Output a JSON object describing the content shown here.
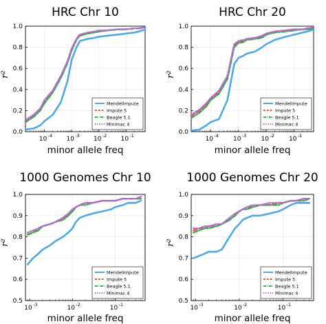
{
  "chart_data": [
    {
      "type": "line",
      "title": "HRC Chr 10",
      "xlabel": "minor allele freq",
      "ylabel": "r²",
      "xscale": "log",
      "xlim": [
        2e-05,
        0.5
      ],
      "ylim": [
        0.0,
        1.0
      ],
      "yticks": [
        "0.0",
        "0.2",
        "0.4",
        "0.6",
        "0.8",
        "1.0"
      ],
      "xticks": [
        {
          "base": "10",
          "exp": "-4",
          "value": 0.0001
        },
        {
          "base": "10",
          "exp": "-3",
          "value": 0.001
        },
        {
          "base": "10",
          "exp": "-2",
          "value": 0.01
        },
        {
          "base": "10",
          "exp": "-1",
          "value": 0.1
        }
      ],
      "grid": true,
      "legend_position": "bottom-right",
      "series": [
        {
          "name": "MendelImpute",
          "color": "#4fa8e6",
          "style": "solid",
          "x": [
            2e-05,
            4e-05,
            7e-05,
            0.0001,
            0.0002,
            0.0004,
            0.0007,
            0.001,
            0.0015,
            0.002,
            0.004,
            0.007,
            0.01,
            0.02,
            0.05,
            0.1,
            0.2,
            0.3,
            0.5
          ],
          "y": [
            0.02,
            0.03,
            0.06,
            0.1,
            0.16,
            0.28,
            0.48,
            0.68,
            0.8,
            0.86,
            0.88,
            0.89,
            0.9,
            0.91,
            0.92,
            0.93,
            0.94,
            0.95,
            0.97
          ]
        },
        {
          "name": "Impute 5",
          "color": "#e05a44",
          "style": "dashed",
          "x": [
            2e-05,
            4e-05,
            7e-05,
            0.0001,
            0.0002,
            0.0004,
            0.0007,
            0.001,
            0.0015,
            0.002,
            0.004,
            0.007,
            0.01,
            0.02,
            0.05,
            0.1,
            0.2,
            0.3,
            0.5
          ],
          "y": [
            0.1,
            0.15,
            0.21,
            0.28,
            0.38,
            0.52,
            0.66,
            0.78,
            0.88,
            0.92,
            0.94,
            0.95,
            0.95,
            0.96,
            0.97,
            0.97,
            0.98,
            0.98,
            0.99
          ]
        },
        {
          "name": "Beagle 5.1",
          "color": "#3caa4e",
          "style": "dashdot",
          "x": [
            2e-05,
            4e-05,
            7e-05,
            0.0001,
            0.0002,
            0.0004,
            0.0007,
            0.001,
            0.0015,
            0.002,
            0.004,
            0.007,
            0.01,
            0.02,
            0.05,
            0.1,
            0.2,
            0.3,
            0.5
          ],
          "y": [
            0.09,
            0.14,
            0.2,
            0.27,
            0.37,
            0.51,
            0.65,
            0.77,
            0.87,
            0.91,
            0.93,
            0.94,
            0.95,
            0.96,
            0.97,
            0.97,
            0.98,
            0.98,
            0.99
          ]
        },
        {
          "name": "Minimac 4",
          "color": "#b569d8",
          "style": "dotted",
          "x": [
            2e-05,
            4e-05,
            7e-05,
            0.0001,
            0.0002,
            0.0004,
            0.0007,
            0.001,
            0.0015,
            0.002,
            0.004,
            0.007,
            0.01,
            0.02,
            0.05,
            0.1,
            0.2,
            0.3,
            0.5
          ],
          "y": [
            0.11,
            0.16,
            0.22,
            0.3,
            0.39,
            0.53,
            0.67,
            0.79,
            0.88,
            0.92,
            0.94,
            0.95,
            0.96,
            0.96,
            0.97,
            0.97,
            0.98,
            0.98,
            0.99
          ]
        }
      ]
    },
    {
      "type": "line",
      "title": "HRC Chr 20",
      "xlabel": "minor allele freq",
      "ylabel": "r²",
      "xscale": "log",
      "xlim": [
        2e-05,
        0.5
      ],
      "ylim": [
        0.0,
        1.0
      ],
      "yticks": [
        "0.0",
        "0.2",
        "0.4",
        "0.6",
        "0.8",
        "1.0"
      ],
      "xticks": [
        {
          "base": "10",
          "exp": "-4",
          "value": 0.0001
        },
        {
          "base": "10",
          "exp": "-3",
          "value": 0.001
        },
        {
          "base": "10",
          "exp": "-2",
          "value": 0.01
        },
        {
          "base": "10",
          "exp": "-1",
          "value": 0.1
        }
      ],
      "grid": true,
      "legend_position": "bottom-right",
      "series": [
        {
          "name": "MendelImpute",
          "color": "#4fa8e6",
          "style": "solid",
          "x": [
            2e-05,
            4e-05,
            7e-05,
            0.0001,
            0.0002,
            0.0004,
            0.0007,
            0.001,
            0.0015,
            0.002,
            0.004,
            0.007,
            0.01,
            0.02,
            0.05,
            0.1,
            0.2,
            0.3,
            0.5
          ],
          "y": [
            0.01,
            0.02,
            0.06,
            0.09,
            0.12,
            0.3,
            0.64,
            0.7,
            0.72,
            0.74,
            0.76,
            0.8,
            0.83,
            0.87,
            0.9,
            0.92,
            0.94,
            0.95,
            0.97
          ]
        },
        {
          "name": "Impute 5",
          "color": "#e05a44",
          "style": "dashed",
          "x": [
            2e-05,
            4e-05,
            7e-05,
            0.0001,
            0.0002,
            0.0004,
            0.0007,
            0.001,
            0.0015,
            0.002,
            0.004,
            0.007,
            0.01,
            0.02,
            0.05,
            0.1,
            0.2,
            0.3,
            0.5
          ],
          "y": [
            0.15,
            0.2,
            0.26,
            0.31,
            0.38,
            0.52,
            0.82,
            0.85,
            0.86,
            0.88,
            0.89,
            0.9,
            0.93,
            0.95,
            0.96,
            0.97,
            0.97,
            0.98,
            0.98
          ]
        },
        {
          "name": "Beagle 5.1",
          "color": "#3caa4e",
          "style": "dashdot",
          "x": [
            2e-05,
            4e-05,
            7e-05,
            0.0001,
            0.0002,
            0.0004,
            0.0007,
            0.001,
            0.0015,
            0.002,
            0.004,
            0.007,
            0.01,
            0.02,
            0.05,
            0.1,
            0.2,
            0.3,
            0.5
          ],
          "y": [
            0.13,
            0.18,
            0.24,
            0.3,
            0.36,
            0.5,
            0.8,
            0.84,
            0.85,
            0.87,
            0.88,
            0.89,
            0.92,
            0.94,
            0.95,
            0.96,
            0.97,
            0.97,
            0.98
          ]
        },
        {
          "name": "Minimac 4",
          "color": "#b569d8",
          "style": "dotted",
          "x": [
            2e-05,
            4e-05,
            7e-05,
            0.0001,
            0.0002,
            0.0004,
            0.0007,
            0.001,
            0.0015,
            0.002,
            0.004,
            0.007,
            0.01,
            0.02,
            0.05,
            0.1,
            0.2,
            0.3,
            0.5
          ],
          "y": [
            0.16,
            0.21,
            0.27,
            0.32,
            0.39,
            0.53,
            0.83,
            0.86,
            0.87,
            0.88,
            0.89,
            0.91,
            0.93,
            0.95,
            0.96,
            0.97,
            0.97,
            0.98,
            0.99
          ]
        }
      ]
    },
    {
      "type": "line",
      "title": "1000 Genomes Chr 10",
      "xlabel": "minor allele freq",
      "ylabel": "r²",
      "xscale": "log",
      "xlim": [
        0.0008,
        0.5
      ],
      "ylim": [
        0.5,
        1.0
      ],
      "yticks": [
        "0.5",
        "0.6",
        "0.7",
        "0.8",
        "0.9",
        "1.0"
      ],
      "xticks": [
        {
          "base": "10",
          "exp": "-3",
          "value": 0.001
        },
        {
          "base": "10",
          "exp": "-2",
          "value": 0.01
        },
        {
          "base": "10",
          "exp": "-1",
          "value": 0.1
        }
      ],
      "grid": true,
      "legend_position": "bottom-right",
      "series": [
        {
          "name": "MendelImpute",
          "color": "#4fa8e6",
          "style": "solid",
          "x": [
            0.0009,
            0.0012,
            0.0016,
            0.002,
            0.003,
            0.004,
            0.006,
            0.008,
            0.01,
            0.012,
            0.015,
            0.02,
            0.03,
            0.05,
            0.08,
            0.1,
            0.15,
            0.2,
            0.3,
            0.4
          ],
          "y": [
            0.67,
            0.7,
            0.72,
            0.74,
            0.76,
            0.78,
            0.8,
            0.82,
            0.84,
            0.87,
            0.89,
            0.9,
            0.91,
            0.92,
            0.93,
            0.94,
            0.95,
            0.96,
            0.96,
            0.97
          ]
        },
        {
          "name": "Impute 5",
          "color": "#e05a44",
          "style": "dashed",
          "x": [
            0.0009,
            0.0012,
            0.0016,
            0.002,
            0.003,
            0.004,
            0.006,
            0.008,
            0.01,
            0.012,
            0.015,
            0.02,
            0.03,
            0.05,
            0.08,
            0.1,
            0.15,
            0.2,
            0.3,
            0.4
          ],
          "y": [
            0.81,
            0.82,
            0.84,
            0.85,
            0.86,
            0.87,
            0.89,
            0.9,
            0.92,
            0.94,
            0.95,
            0.96,
            0.96,
            0.97,
            0.97,
            0.97,
            0.98,
            0.98,
            0.98,
            0.98
          ]
        },
        {
          "name": "Beagle 5.1",
          "color": "#3caa4e",
          "style": "dashdot",
          "x": [
            0.0009,
            0.0012,
            0.0016,
            0.002,
            0.003,
            0.004,
            0.006,
            0.008,
            0.01,
            0.012,
            0.015,
            0.02,
            0.03,
            0.05,
            0.08,
            0.1,
            0.15,
            0.2,
            0.3,
            0.4
          ],
          "y": [
            0.81,
            0.82,
            0.83,
            0.85,
            0.86,
            0.87,
            0.88,
            0.9,
            0.92,
            0.94,
            0.95,
            0.95,
            0.96,
            0.97,
            0.97,
            0.97,
            0.98,
            0.98,
            0.98,
            0.98
          ]
        },
        {
          "name": "Minimac 4",
          "color": "#b569d8",
          "style": "dotted",
          "x": [
            0.0009,
            0.0012,
            0.0016,
            0.002,
            0.003,
            0.004,
            0.006,
            0.008,
            0.01,
            0.012,
            0.015,
            0.02,
            0.03,
            0.05,
            0.08,
            0.1,
            0.15,
            0.2,
            0.3,
            0.4
          ],
          "y": [
            0.82,
            0.83,
            0.84,
            0.85,
            0.86,
            0.87,
            0.89,
            0.91,
            0.93,
            0.94,
            0.95,
            0.96,
            0.96,
            0.97,
            0.97,
            0.97,
            0.98,
            0.98,
            0.98,
            0.99
          ]
        }
      ]
    },
    {
      "type": "line",
      "title": "1000 Genomes Chr 20",
      "xlabel": "minor allele freq",
      "ylabel": "r²",
      "xscale": "log",
      "xlim": [
        0.0008,
        0.5
      ],
      "ylim": [
        0.5,
        1.0
      ],
      "yticks": [
        "0.5",
        "0.6",
        "0.7",
        "0.8",
        "0.9",
        "1.0"
      ],
      "xticks": [
        {
          "base": "10",
          "exp": "-3",
          "value": 0.001
        },
        {
          "base": "10",
          "exp": "-2",
          "value": 0.01
        },
        {
          "base": "10",
          "exp": "-1",
          "value": 0.1
        }
      ],
      "grid": true,
      "legend_position": "bottom-right",
      "series": [
        {
          "name": "MendelImpute",
          "color": "#4fa8e6",
          "style": "solid",
          "x": [
            0.0009,
            0.0012,
            0.0016,
            0.002,
            0.003,
            0.004,
            0.006,
            0.008,
            0.01,
            0.012,
            0.015,
            0.02,
            0.03,
            0.05,
            0.08,
            0.1,
            0.15,
            0.2,
            0.3,
            0.4
          ],
          "y": [
            0.7,
            0.71,
            0.72,
            0.73,
            0.73,
            0.74,
            0.8,
            0.84,
            0.86,
            0.88,
            0.89,
            0.9,
            0.9,
            0.91,
            0.92,
            0.93,
            0.95,
            0.96,
            0.96,
            0.96
          ]
        },
        {
          "name": "Impute 5",
          "color": "#e05a44",
          "style": "dashed",
          "x": [
            0.0009,
            0.0012,
            0.0016,
            0.002,
            0.003,
            0.004,
            0.006,
            0.008,
            0.01,
            0.012,
            0.015,
            0.02,
            0.03,
            0.05,
            0.08,
            0.1,
            0.15,
            0.2,
            0.3,
            0.4
          ],
          "y": [
            0.83,
            0.84,
            0.84,
            0.85,
            0.85,
            0.86,
            0.88,
            0.9,
            0.92,
            0.93,
            0.94,
            0.94,
            0.95,
            0.95,
            0.96,
            0.96,
            0.97,
            0.97,
            0.98,
            0.98
          ]
        },
        {
          "name": "Beagle 5.1",
          "color": "#3caa4e",
          "style": "dashdot",
          "x": [
            0.0009,
            0.0012,
            0.0016,
            0.002,
            0.003,
            0.004,
            0.006,
            0.008,
            0.01,
            0.012,
            0.015,
            0.02,
            0.03,
            0.05,
            0.08,
            0.1,
            0.15,
            0.2,
            0.3,
            0.4
          ],
          "y": [
            0.82,
            0.83,
            0.84,
            0.84,
            0.85,
            0.86,
            0.88,
            0.9,
            0.92,
            0.93,
            0.93,
            0.94,
            0.95,
            0.95,
            0.95,
            0.96,
            0.97,
            0.97,
            0.97,
            0.98
          ]
        },
        {
          "name": "Minimac 4",
          "color": "#b569d8",
          "style": "dotted",
          "x": [
            0.0009,
            0.0012,
            0.0016,
            0.002,
            0.003,
            0.004,
            0.006,
            0.008,
            0.01,
            0.012,
            0.015,
            0.02,
            0.03,
            0.05,
            0.08,
            0.1,
            0.15,
            0.2,
            0.3,
            0.4
          ],
          "y": [
            0.84,
            0.84,
            0.85,
            0.85,
            0.86,
            0.86,
            0.89,
            0.91,
            0.92,
            0.93,
            0.94,
            0.95,
            0.95,
            0.96,
            0.96,
            0.96,
            0.97,
            0.97,
            0.98,
            0.98
          ]
        }
      ]
    }
  ]
}
